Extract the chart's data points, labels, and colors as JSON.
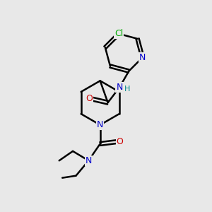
{
  "bg_color": "#e8e8e8",
  "atom_colors": {
    "N": "#0000cc",
    "O": "#cc0000",
    "Cl": "#00aa00",
    "H": "#008888"
  },
  "bond_color": "#000000",
  "bond_width": 1.8,
  "figsize": [
    3.0,
    3.0
  ],
  "dpi": 100,
  "xlim": [
    0,
    10
  ],
  "ylim": [
    0,
    10
  ]
}
